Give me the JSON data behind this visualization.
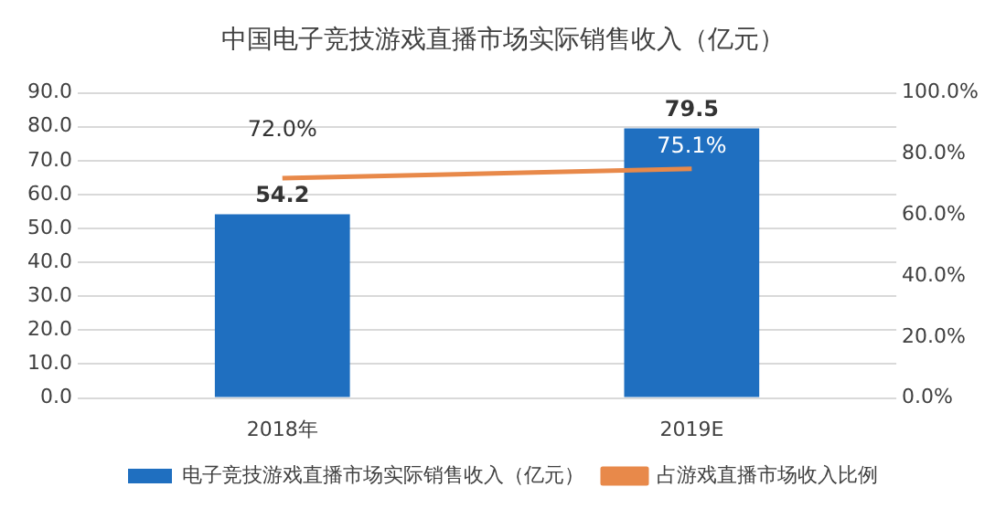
{
  "chart_data": {
    "type": "bar",
    "title": "中国电子竞技游戏直播市场实际销售收入（亿元）",
    "categories": [
      "2018年",
      "2019E"
    ],
    "series": [
      {
        "name": "电子竞技游戏直播市场实际销售收入（亿元）",
        "color": "#1f6fc0",
        "values": [
          54.2,
          79.5
        ],
        "value_labels": [
          "54.2",
          "79.5"
        ]
      },
      {
        "name": "占游戏直播市场收入比例",
        "type": "line",
        "axis": "y2",
        "color": "#e8894a",
        "values": [
          72.0,
          75.1
        ],
        "value_labels": [
          "72.0%",
          "75.1%"
        ]
      }
    ],
    "ylim": [
      0,
      90
    ],
    "yticks": [
      {
        "value": 0,
        "label": "0.0"
      },
      {
        "value": 10,
        "label": "10.0"
      },
      {
        "value": 20,
        "label": "20.0"
      },
      {
        "value": 30,
        "label": "30.0"
      },
      {
        "value": 40,
        "label": "40.0"
      },
      {
        "value": 50,
        "label": "50.0"
      },
      {
        "value": 60,
        "label": "60.0"
      },
      {
        "value": 70,
        "label": "70.0"
      },
      {
        "value": 80,
        "label": "80.0"
      },
      {
        "value": 90,
        "label": "90.0"
      }
    ],
    "y2lim": [
      0,
      100
    ],
    "y2ticks": [
      {
        "value": 0,
        "label": "0.0%"
      },
      {
        "value": 20,
        "label": "20.0%"
      },
      {
        "value": 40,
        "label": "40.0%"
      },
      {
        "value": 60,
        "label": "60.0%"
      },
      {
        "value": 80,
        "label": "80.0%"
      },
      {
        "value": 100,
        "label": "100.0%"
      }
    ],
    "grid": "y",
    "legend": "bottom",
    "marker": "none",
    "line_style": "solid"
  }
}
